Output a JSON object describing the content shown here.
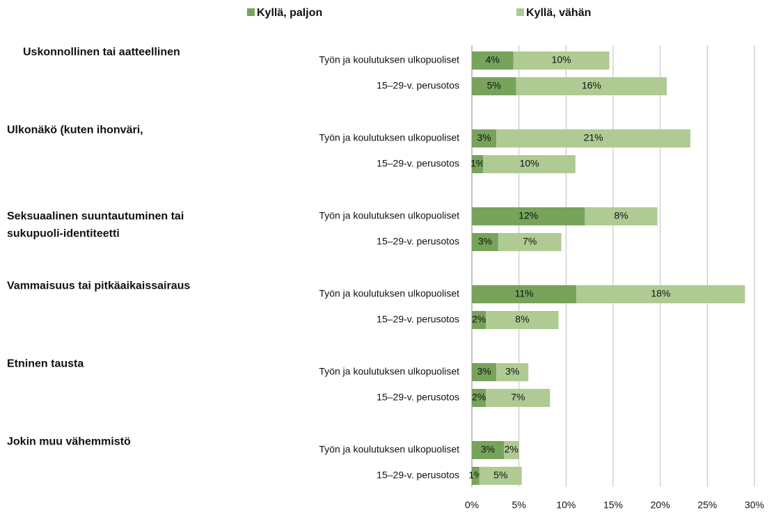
{
  "chart_data": {
    "type": "stacked-bar-horizontal",
    "groups": [
      [
        "Uskonnollinen tai aatteellinen"
      ],
      [
        "Ulkonäkö (kuten ihonväri,"
      ],
      [
        "Seksuaalinen suuntautuminen tai",
        "sukupuoli-identiteetti"
      ],
      [
        "Vammaisuus tai pitkäaikaissairaus"
      ],
      [
        "Etninen tausta"
      ],
      [
        "Jokin muu vähemmistö"
      ]
    ],
    "categories": [
      "Työn ja koulutuksen ulkopuoliset",
      "15–29-v. perusotos",
      "Työn ja koulutuksen ulkopuoliset",
      "15–29-v. perusotos",
      "Työn ja koulutuksen ulkopuoliset",
      "15–29-v. perusotos",
      "Työn ja koulutuksen ulkopuoliset",
      "15–29-v. perusotos",
      "Työn ja koulutuksen ulkopuoliset",
      "15–29-v. perusotos",
      "Työn ja koulutuksen ulkopuoliset",
      "15–29-v. perusotos"
    ],
    "series": [
      {
        "name": "Kyllä, paljon",
        "color": "#77a35a",
        "values": [
          4.4,
          4.7,
          2.6,
          1.2,
          12.0,
          2.8,
          11.1,
          1.5,
          2.6,
          1.5,
          3.4,
          0.8
        ],
        "value_labels": [
          "4%",
          "5%",
          "3%",
          "1%",
          "12%",
          "3%",
          "11%",
          "2%",
          "3%",
          "2%",
          "3%",
          "1%"
        ]
      },
      {
        "name": "Kyllä, vähän",
        "color": "#afcb93",
        "values": [
          10.2,
          16.0,
          20.6,
          9.8,
          7.7,
          6.7,
          17.9,
          7.7,
          3.4,
          6.8,
          1.6,
          4.5
        ],
        "value_labels": [
          "10%",
          "16%",
          "21%",
          "10%",
          "8%",
          "7%",
          "18%",
          "8%",
          "3%",
          "7%",
          "2%",
          "5%"
        ]
      }
    ],
    "xlim": [
      0,
      30
    ],
    "xticks": [
      {
        "value": 0,
        "label": "0%"
      },
      {
        "value": 5,
        "label": "5%"
      },
      {
        "value": 10,
        "label": "10%"
      },
      {
        "value": 15,
        "label": "15%"
      },
      {
        "value": 20,
        "label": "20%"
      },
      {
        "value": 25,
        "label": "25%"
      },
      {
        "value": 30,
        "label": "30%"
      }
    ],
    "grid": true
  }
}
